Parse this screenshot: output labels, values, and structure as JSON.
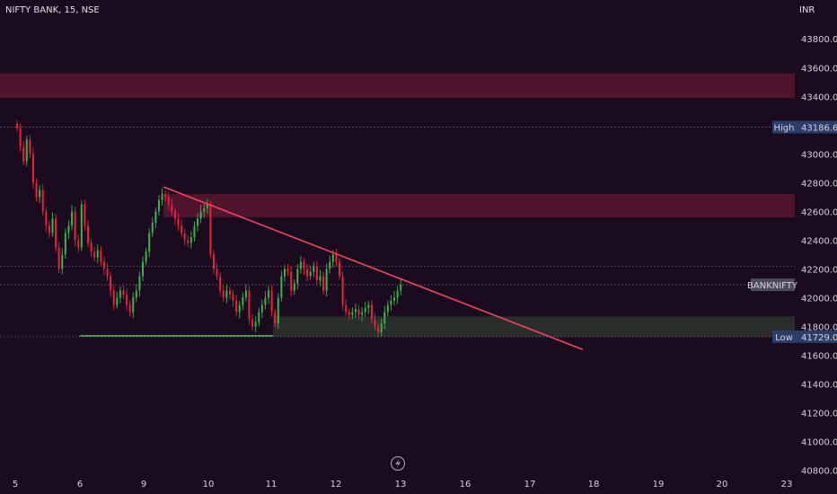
{
  "header": {
    "symbol_title": "NIFTY BANK, 15, NSE",
    "currency": "INR"
  },
  "colors": {
    "background": "#1a0b1f",
    "up_candle": "#3bb34a",
    "down_candle": "#e8233a",
    "resistance_zone": "#5a1830",
    "support_zone": "#2a302c",
    "trendline": "#f0455e",
    "support_line": "#4cbb50",
    "dotted_line": "#8f8197",
    "label_bg": "#2b3e6a",
    "symbol_label_bg": "#4b4c5a"
  },
  "labels": {
    "high_label": "High",
    "high_value": "43186.65",
    "low_label": "Low",
    "low_value": "41729.00",
    "symbol_label": "BANKNIFTY"
  },
  "chart_data": {
    "type": "candlestick",
    "title": "NIFTY BANK, 15, NSE",
    "y_axis_ticks": [
      "43800.00",
      "43600.00",
      "43400.00",
      "43200.00",
      "43000.00",
      "42800.00",
      "42600.00",
      "42400.00",
      "42200.00",
      "42000.00",
      "41800.00",
      "41600.00",
      "41400.00",
      "41200.00",
      "41000.00",
      "40800.00"
    ],
    "x_axis_ticks": [
      "5",
      "6",
      "9",
      "10",
      "11",
      "12",
      "13",
      "16",
      "17",
      "18",
      "19",
      "20",
      "23"
    ],
    "ylim": [
      40760,
      44070
    ],
    "high": 43186.65,
    "low": 41729.0,
    "last_price": 42090,
    "resistance_zones": [
      [
        43390,
        43560
      ],
      [
        42560,
        42720
      ]
    ],
    "support_zone": [
      41729,
      41870
    ],
    "trendline": {
      "start": {
        "session": 2.3,
        "price": 42770
      },
      "end": {
        "session": 8.8,
        "price": 41640
      }
    },
    "support_line": {
      "start": {
        "session": 1.0,
        "price": 41735
      },
      "end": {
        "session": 4.0,
        "price": 41735
      }
    },
    "series": [
      {
        "session": "5",
        "closes": [
          43180,
          43050,
          42950,
          43100,
          43000,
          42800,
          42700,
          42750,
          42600,
          42500,
          42450,
          42550,
          42350,
          42200,
          42300,
          42450,
          42500,
          42600,
          42400,
          42350
        ]
      },
      {
        "session": "6",
        "closes": [
          42650,
          42500,
          42380,
          42320,
          42280,
          42330,
          42250,
          42200,
          42150,
          42050,
          41950,
          42000,
          42050,
          42020,
          41950,
          41900,
          42000,
          42050,
          42150,
          42250
        ]
      },
      {
        "session": "9",
        "closes": [
          42320,
          42450,
          42520,
          42600,
          42680,
          42720,
          42700,
          42650,
          42600,
          42550,
          42500,
          42450,
          42400,
          42380,
          42420,
          42500,
          42550,
          42600,
          42620,
          42650
        ]
      },
      {
        "session": "10",
        "closes": [
          42300,
          42200,
          42150,
          42050,
          42000,
          42050,
          42020,
          41980,
          41900,
          41950,
          42000,
          42050,
          41850,
          41800,
          41830,
          41900,
          41950,
          42000,
          42050,
          41900
        ]
      },
      {
        "session": "11",
        "closes": [
          41820,
          42000,
          42150,
          42200,
          42180,
          42050,
          42100,
          42200,
          42250,
          42200,
          42150,
          42180,
          42220,
          42120,
          42150,
          42050,
          42200,
          42250,
          42300,
          42250
        ]
      },
      {
        "session": "12",
        "closes": [
          42150,
          41950,
          41900,
          41880,
          41900,
          41920,
          41880,
          41900,
          41930,
          41950,
          41850,
          41800,
          41760,
          41820,
          41900,
          41950,
          41980,
          42000,
          42050,
          42090
        ]
      }
    ]
  }
}
